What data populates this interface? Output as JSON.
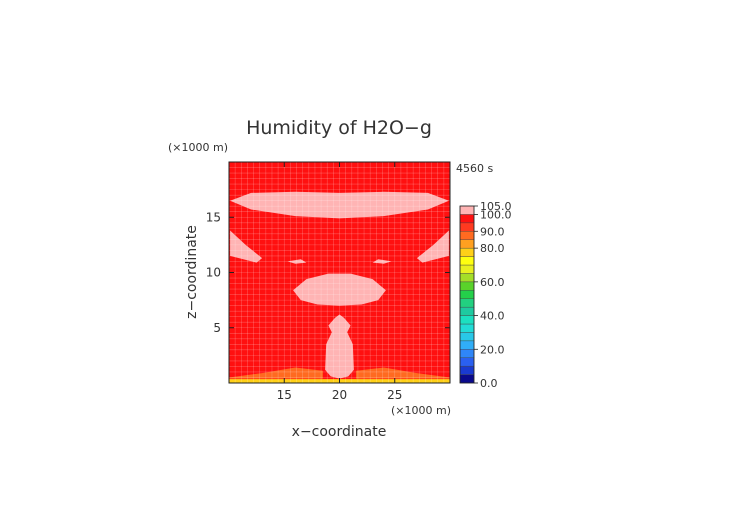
{
  "chart_data": {
    "type": "heatmap",
    "title": "Humidity of H2O−g",
    "time_label": "4560 s",
    "xlabel": "x−coordinate",
    "ylabel": "z−coordinate",
    "x_unit": "(×1000 m)",
    "y_unit": "(×1000 m)",
    "xlim": [
      10,
      30
    ],
    "ylim": [
      0,
      20
    ],
    "x_ticks": [
      15,
      20,
      25
    ],
    "y_ticks": [
      5,
      10,
      15
    ],
    "background_value": 95,
    "regions": [
      {
        "name": "upper-saturated-layer",
        "value": 102,
        "outline": [
          [
            10.1,
            16.5
          ],
          [
            12,
            17.2
          ],
          [
            16,
            17.3
          ],
          [
            20,
            17.2
          ],
          [
            24,
            17.3
          ],
          [
            28,
            17.2
          ],
          [
            29.9,
            16.5
          ],
          [
            28,
            15.7
          ],
          [
            24,
            15.1
          ],
          [
            20,
            14.9
          ],
          [
            16,
            15.1
          ],
          [
            12,
            15.7
          ]
        ]
      },
      {
        "name": "left-edge-plume",
        "value": 102,
        "outline": [
          [
            10.1,
            13.8
          ],
          [
            11.5,
            12.5
          ],
          [
            13,
            11.3
          ],
          [
            12.5,
            10.9
          ],
          [
            10.1,
            11.5
          ]
        ]
      },
      {
        "name": "right-edge-plume",
        "value": 102,
        "outline": [
          [
            29.9,
            13.8
          ],
          [
            28.5,
            12.5
          ],
          [
            27,
            11.3
          ],
          [
            27.5,
            10.9
          ],
          [
            29.9,
            11.5
          ]
        ]
      },
      {
        "name": "left-wisp",
        "value": 102,
        "outline": [
          [
            15.3,
            11.0
          ],
          [
            16.5,
            11.2
          ],
          [
            17,
            10.9
          ],
          [
            16,
            10.8
          ]
        ]
      },
      {
        "name": "right-wisp",
        "value": 102,
        "outline": [
          [
            24.7,
            11.0
          ],
          [
            23.5,
            11.2
          ],
          [
            23,
            10.9
          ],
          [
            24,
            10.8
          ]
        ]
      },
      {
        "name": "mid-saturated-layer",
        "value": 102,
        "outline": [
          [
            15.8,
            8.4
          ],
          [
            17,
            9.4
          ],
          [
            19,
            9.9
          ],
          [
            21,
            9.9
          ],
          [
            23,
            9.4
          ],
          [
            24.2,
            8.4
          ],
          [
            23.5,
            7.5
          ],
          [
            22,
            7.1
          ],
          [
            20,
            7.0
          ],
          [
            18,
            7.1
          ],
          [
            16.5,
            7.5
          ]
        ]
      },
      {
        "name": "cloud-column",
        "value": 102,
        "outline": [
          [
            19.0,
            5.2
          ],
          [
            19.6,
            5.9
          ],
          [
            20,
            6.2
          ],
          [
            20.4,
            5.9
          ],
          [
            21.0,
            5.2
          ],
          [
            20.7,
            4.6
          ],
          [
            21.2,
            3.5
          ],
          [
            21.3,
            1.2
          ],
          [
            20.8,
            0.6
          ],
          [
            20,
            0.4
          ],
          [
            19.2,
            0.6
          ],
          [
            18.7,
            1.2
          ],
          [
            18.8,
            3.5
          ],
          [
            19.3,
            4.6
          ]
        ]
      },
      {
        "name": "near-surface-band-left",
        "value": 85,
        "outline": [
          [
            10,
            0.5
          ],
          [
            13,
            0.9
          ],
          [
            16,
            1.4
          ],
          [
            18.5,
            1.1
          ],
          [
            18.5,
            0.4
          ],
          [
            10,
            0.4
          ]
        ]
      },
      {
        "name": "near-surface-band-right",
        "value": 85,
        "outline": [
          [
            30,
            0.5
          ],
          [
            27,
            0.9
          ],
          [
            24,
            1.4
          ],
          [
            21.5,
            1.1
          ],
          [
            21.5,
            0.4
          ],
          [
            30,
            0.4
          ]
        ]
      },
      {
        "name": "surface-layer",
        "value": 75,
        "outline": [
          [
            10,
            0
          ],
          [
            30,
            0
          ],
          [
            30,
            0.35
          ],
          [
            10,
            0.35
          ]
        ]
      }
    ],
    "colorbar": {
      "labels": [
        "105.0",
        "100.0",
        "90.0",
        "80.0",
        "60.0",
        "40.0",
        "20.0",
        "0.0"
      ],
      "levels": [
        0,
        5,
        10,
        15,
        20,
        25,
        30,
        35,
        40,
        45,
        50,
        55,
        60,
        65,
        70,
        75,
        80,
        85,
        90,
        95,
        100,
        105
      ],
      "colors": [
        "#0a0a8c",
        "#1a3ad0",
        "#2a60f0",
        "#2f86f8",
        "#30aef8",
        "#29c8e8",
        "#22dcd6",
        "#1ce0c0",
        "#1ecaa0",
        "#22d080",
        "#24d04a",
        "#5ad22a",
        "#a4de28",
        "#e8f020",
        "#ffff10",
        "#ffd018",
        "#ffa020",
        "#ff6a20",
        "#ff3a20",
        "#ff1010",
        "#ffb4b4"
      ],
      "top_color": "#ffffff"
    },
    "colors": {
      "surface": "#ffff10",
      "near_surface": "#ff8c1a",
      "background": "#ff1010",
      "saturated": "#ffb4b4"
    },
    "grid": true
  }
}
